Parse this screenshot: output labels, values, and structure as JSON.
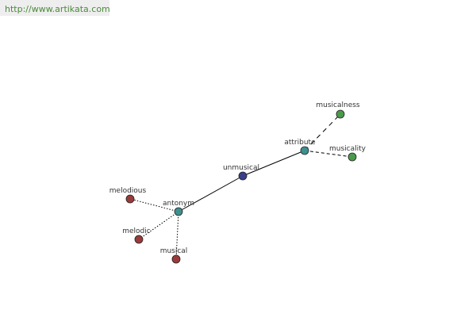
{
  "header": {
    "url": "http://www.artikata.com"
  },
  "nodes": [
    {
      "label": "unmusical"
    },
    {
      "label": "antonym"
    },
    {
      "label": "attribute"
    },
    {
      "label": "musicalness"
    },
    {
      "label": "musicality"
    },
    {
      "label": "melodious"
    },
    {
      "label": "melodic"
    },
    {
      "label": "musical"
    }
  ]
}
